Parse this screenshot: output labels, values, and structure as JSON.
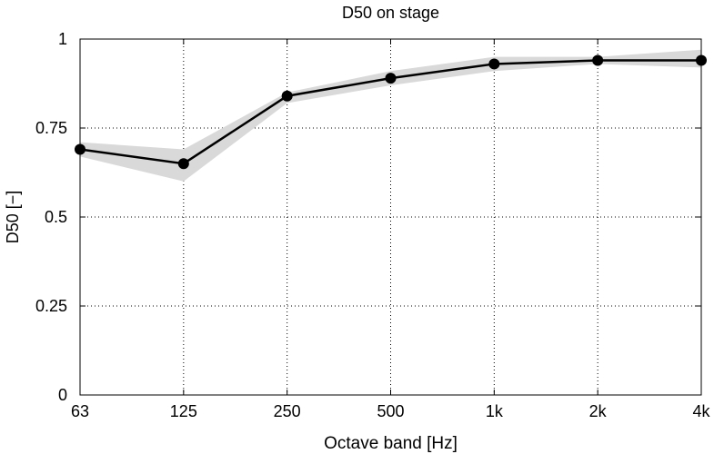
{
  "chart_data": {
    "type": "line",
    "title": "D50 on stage",
    "xlabel": "Octave band [Hz]",
    "ylabel": "D50 [−]",
    "categories": [
      "63",
      "125",
      "250",
      "500",
      "1k",
      "2k",
      "4k"
    ],
    "series": [
      {
        "values": [
          0.69,
          0.65,
          0.84,
          0.89,
          0.93,
          0.94,
          0.94
        ],
        "band_upper": [
          0.71,
          0.69,
          0.85,
          0.91,
          0.95,
          0.95,
          0.97
        ],
        "band_lower": [
          0.67,
          0.6,
          0.82,
          0.87,
          0.91,
          0.93,
          0.92
        ]
      }
    ],
    "ylim": [
      0,
      1
    ],
    "yticks": [
      0,
      0.25,
      0.5,
      0.75,
      1
    ],
    "ytick_labels": [
      "0",
      "0.25",
      "0.5",
      "0.75",
      "1"
    ],
    "grid": true,
    "colors": {
      "line": "#000000",
      "band": "#d9d9d9",
      "marker": "#000000"
    }
  }
}
